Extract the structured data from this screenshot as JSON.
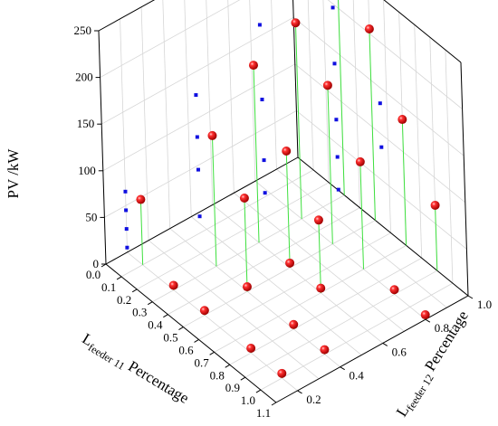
{
  "chart_data": {
    "type": "scatter3d",
    "title": "",
    "xlabel": "L",
    "xlabel_sub": "feeder 11",
    "xlabel_tail": " Percentage",
    "ylabel": "L",
    "ylabel_sub": "feeder 12",
    "ylabel_tail": " Percentage",
    "zlabel": "PV /kW",
    "xlim": [
      0,
      1.1
    ],
    "ylim": [
      0.1,
      1.0
    ],
    "zlim": [
      0,
      250
    ],
    "x_ticks": [
      "0.0",
      "0.1",
      "0.2",
      "0.3",
      "0.4",
      "0.5",
      "0.6",
      "0.7",
      "0.8",
      "0.9",
      "1.0",
      "1.1"
    ],
    "y_ticks": [
      "0.2",
      "0.4",
      "0.6",
      "0.8",
      "1.0"
    ],
    "z_ticks": [
      "0",
      "50",
      "100",
      "150",
      "200",
      "250"
    ],
    "grid": true,
    "series": [
      {
        "marker": "red-sphere",
        "color": "#e01010",
        "drop_color": "#3ee03e",
        "points": [
          {
            "x": 0.1,
            "y": 0.2,
            "z": 70
          },
          {
            "x": 0.3,
            "y": 0.4,
            "z": 140
          },
          {
            "x": 0.3,
            "y": 0.6,
            "z": 190
          },
          {
            "x": 0.3,
            "y": 0.8,
            "z": 210
          },
          {
            "x": 0.3,
            "y": 1.0,
            "z": 220
          },
          {
            "x": 0.5,
            "y": 0.4,
            "z": 100
          },
          {
            "x": 0.5,
            "y": 0.6,
            "z": 125
          },
          {
            "x": 0.5,
            "y": 0.8,
            "z": 170
          },
          {
            "x": 0.5,
            "y": 1.0,
            "z": 205
          },
          {
            "x": 0.7,
            "y": 0.6,
            "z": 78
          },
          {
            "x": 0.7,
            "y": 0.8,
            "z": 115
          },
          {
            "x": 0.7,
            "y": 1.0,
            "z": 135
          },
          {
            "x": 0.9,
            "y": 1.0,
            "z": 70
          },
          {
            "x": 0.5,
            "y": 0.2,
            "z": 5
          },
          {
            "x": 0.8,
            "y": 0.2,
            "z": 5
          },
          {
            "x": 1.0,
            "y": 0.2,
            "z": 5
          },
          {
            "x": 0.8,
            "y": 0.4,
            "z": 5
          },
          {
            "x": 1.0,
            "y": 0.4,
            "z": 5
          },
          {
            "x": 0.3,
            "y": 0.2,
            "z": 5
          },
          {
            "x": 0.5,
            "y": 0.4,
            "z": 5
          },
          {
            "x": 0.5,
            "y": 0.6,
            "z": 5
          },
          {
            "x": 0.7,
            "y": 0.6,
            "z": 5
          },
          {
            "x": 0.9,
            "y": 0.8,
            "z": 5
          },
          {
            "x": 1.1,
            "y": 0.8,
            "z": 5
          }
        ]
      },
      {
        "marker": "blue-square",
        "color": "#1010e0",
        "points": [
          {
            "x": 0.0,
            "y": 0.2,
            "z": 5
          },
          {
            "x": 0.0,
            "y": 0.2,
            "z": 25
          },
          {
            "x": 0.0,
            "y": 0.2,
            "z": 45
          },
          {
            "x": 0.0,
            "y": 0.2,
            "z": 65
          },
          {
            "x": 0.2,
            "y": 0.4,
            "z": 40
          },
          {
            "x": 0.2,
            "y": 0.4,
            "z": 90
          },
          {
            "x": 0.2,
            "y": 0.4,
            "z": 125
          },
          {
            "x": 0.2,
            "y": 0.4,
            "z": 170
          },
          {
            "x": 0.35,
            "y": 0.6,
            "z": 60
          },
          {
            "x": 0.35,
            "y": 0.6,
            "z": 95
          },
          {
            "x": 0.35,
            "y": 0.6,
            "z": 160
          },
          {
            "x": 0.35,
            "y": 0.6,
            "z": 240
          },
          {
            "x": 0.55,
            "y": 0.8,
            "z": 65
          },
          {
            "x": 0.55,
            "y": 0.8,
            "z": 100
          },
          {
            "x": 0.55,
            "y": 0.8,
            "z": 140
          },
          {
            "x": 0.55,
            "y": 0.8,
            "z": 200
          },
          {
            "x": 0.55,
            "y": 0.8,
            "z": 260
          },
          {
            "x": 0.7,
            "y": 0.9,
            "z": 118
          },
          {
            "x": 0.7,
            "y": 0.9,
            "z": 165
          }
        ]
      }
    ]
  }
}
